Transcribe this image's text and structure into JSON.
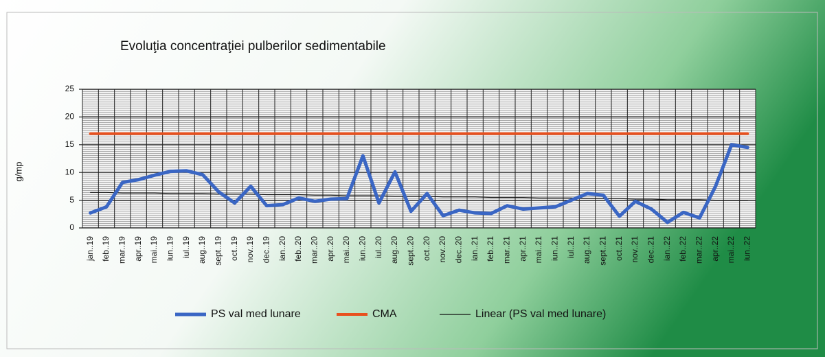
{
  "chart_data": {
    "type": "line",
    "title": "Evoluţia concentraţiei pulberilor sedimentabile",
    "y_label": "g/mp",
    "categories": [
      "jan..19",
      "feb..19",
      "mar..19",
      "apr..19",
      "mai..19",
      "iun..19",
      "iul..19",
      "aug..19",
      "sept..19",
      "oct..19",
      "nov..19",
      "dec..19",
      "ian..20",
      "feb..20",
      "mar..20",
      "apr..20",
      "mai..20",
      "iun..20",
      "iul..20",
      "aug..20",
      "sept..20",
      "oct..20",
      "nov..20",
      "dec..20",
      "ian..21",
      "feb..21",
      "mar..21",
      "apr..21",
      "mai..21",
      "iun..21",
      "iul..21",
      "aug..21",
      "sept..21",
      "oct..21",
      "nov..21",
      "dec..21",
      "ian..22",
      "feb..22",
      "mar..22",
      "apr..22",
      "mai..22",
      "iun..22"
    ],
    "series": [
      {
        "name": "PS val med lunare",
        "color": "#3a66c4",
        "width": 5,
        "values": [
          2.7,
          3.8,
          8.2,
          8.7,
          9.5,
          10.2,
          10.3,
          9.6,
          6.5,
          4.5,
          7.5,
          4.0,
          4.2,
          5.4,
          4.8,
          5.2,
          5.3,
          13.0,
          4.5,
          10.1,
          3.0,
          6.2,
          2.2,
          3.2,
          2.7,
          2.6,
          4.0,
          3.4,
          3.6,
          3.8,
          5.0,
          6.2,
          5.9,
          2.1,
          4.8,
          3.4,
          1.0,
          2.8,
          1.8,
          7.5,
          15.0,
          14.5
        ]
      },
      {
        "name": "CMA",
        "color": "#e8501e",
        "width": 4,
        "values": [
          17,
          17,
          17,
          17,
          17,
          17,
          17,
          17,
          17,
          17,
          17,
          17,
          17,
          17,
          17,
          17,
          17,
          17,
          17,
          17,
          17,
          17,
          17,
          17,
          17,
          17,
          17,
          17,
          17,
          17,
          17,
          17,
          17,
          17,
          17,
          17,
          17,
          17,
          17,
          17,
          17,
          17
        ]
      },
      {
        "name": "Linear (PS val med lunare)",
        "color": "#111111",
        "width": 1.2,
        "values": [
          6.4,
          6.4,
          6.3,
          6.3,
          6.3,
          6.2,
          6.2,
          6.2,
          6.1,
          6.1,
          6.1,
          6.0,
          6.0,
          6.0,
          5.9,
          5.9,
          5.8,
          5.8,
          5.8,
          5.7,
          5.7,
          5.7,
          5.6,
          5.6,
          5.6,
          5.5,
          5.5,
          5.5,
          5.4,
          5.4,
          5.4,
          5.3,
          5.3,
          5.3,
          5.2,
          5.2,
          5.1,
          5.1,
          5.1,
          5.0,
          5.0,
          5.0
        ]
      }
    ],
    "ylim": [
      0,
      25
    ],
    "yticks": [
      0,
      5,
      10,
      15,
      20,
      25
    ],
    "grid": true
  }
}
